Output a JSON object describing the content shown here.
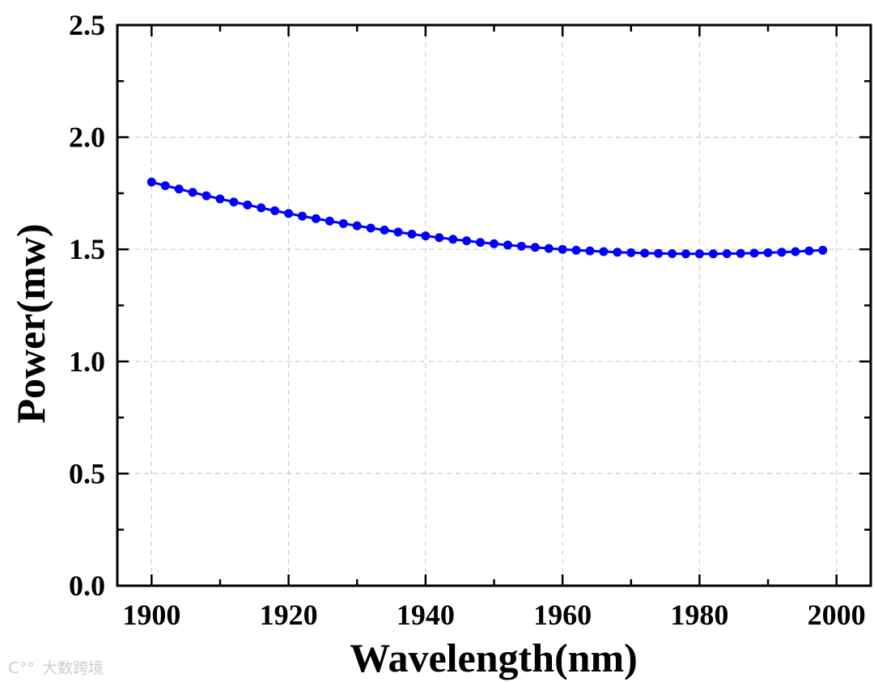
{
  "chart_data": {
    "type": "line",
    "title": "",
    "xlabel": "Wavelength(nm)",
    "ylabel": "Power(mw)",
    "xlim": [
      1895,
      2005
    ],
    "ylim": [
      0,
      2.5
    ],
    "xticks": [
      1900,
      1920,
      1940,
      1960,
      1980,
      2000
    ],
    "yticks": [
      "0.0",
      "0.5",
      "1.0",
      "1.5",
      "2.0",
      "2.5"
    ],
    "grid": true,
    "series": [
      {
        "name": "Power",
        "color": "#0000ff",
        "marker": "circle",
        "x": [
          1900,
          1902,
          1904,
          1906,
          1908,
          1910,
          1912,
          1914,
          1916,
          1918,
          1920,
          1922,
          1924,
          1926,
          1928,
          1930,
          1932,
          1934,
          1936,
          1938,
          1940,
          1942,
          1944,
          1946,
          1948,
          1950,
          1952,
          1954,
          1956,
          1958,
          1960,
          1962,
          1964,
          1966,
          1968,
          1970,
          1972,
          1974,
          1976,
          1978,
          1980,
          1982,
          1984,
          1986,
          1988,
          1990,
          1992,
          1994,
          1996,
          1998
        ],
        "y": [
          1.8,
          1.784,
          1.769,
          1.754,
          1.739,
          1.725,
          1.711,
          1.698,
          1.685,
          1.672,
          1.66,
          1.648,
          1.637,
          1.626,
          1.615,
          1.605,
          1.595,
          1.586,
          1.577,
          1.568,
          1.56,
          1.552,
          1.545,
          1.538,
          1.531,
          1.525,
          1.519,
          1.514,
          1.509,
          1.504,
          1.5,
          1.496,
          1.493,
          1.49,
          1.487,
          1.485,
          1.483,
          1.482,
          1.481,
          1.48,
          1.48,
          1.48,
          1.481,
          1.482,
          1.483,
          1.485,
          1.487,
          1.49,
          1.493,
          1.496
        ]
      }
    ]
  },
  "watermark": "大数跨境"
}
